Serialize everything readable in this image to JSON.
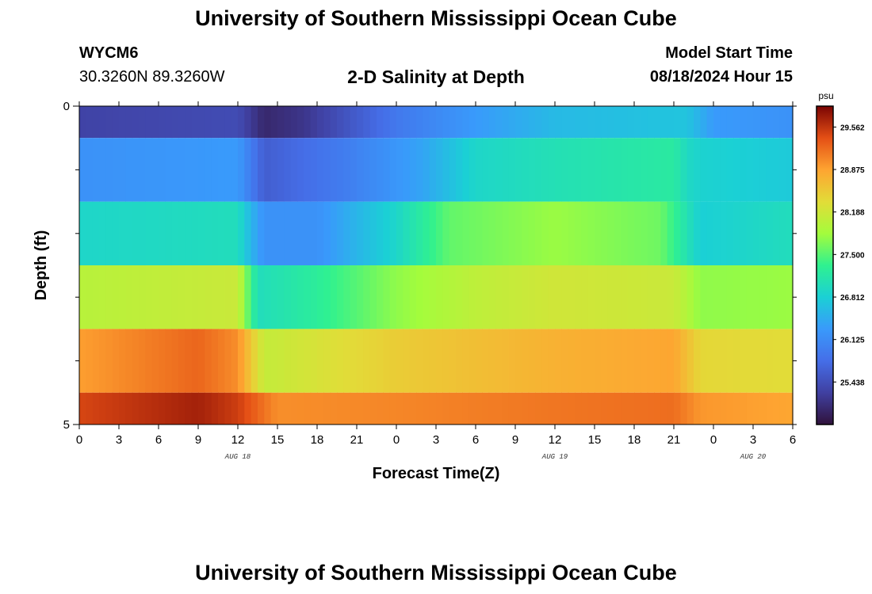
{
  "header": {
    "title": "University of Southern Mississippi Ocean Cube",
    "station_id": "WYCM6",
    "coordinates": "30.3260N  89.3260W",
    "subtitle": "2-D Salinity at Depth",
    "model_start_label": "Model Start Time",
    "model_start_value": "08/18/2024 Hour 15"
  },
  "footer": {
    "title": "University of Southern Mississippi Ocean Cube"
  },
  "chart_data": {
    "type": "heatmap",
    "title": "2-D Salinity at Depth",
    "xlabel": "Forecast Time(Z)",
    "ylabel": "Depth (ft)",
    "x_range_hours": [
      0,
      54
    ],
    "x_tick_labels": [
      "0",
      "3",
      "6",
      "9",
      "12",
      "15",
      "18",
      "21",
      "0",
      "3",
      "6",
      "9",
      "12",
      "15",
      "18",
      "21",
      "0",
      "3",
      "6"
    ],
    "date_labels": [
      {
        "text": "AUG 18",
        "hour": 12
      },
      {
        "text": "AUG 19",
        "hour": 36
      },
      {
        "text": "AUG 20",
        "hour": 51
      }
    ],
    "y_range": [
      0,
      5
    ],
    "y_tick_labels": [
      "0",
      "5"
    ],
    "layers": [
      {
        "depth_top": 0.0,
        "depth_bottom": 0.5,
        "values": [
          [
            0,
            25.3
          ],
          [
            12,
            25.4
          ],
          [
            14,
            25.0
          ],
          [
            17,
            25.15
          ],
          [
            24,
            25.9
          ],
          [
            30,
            26.3
          ],
          [
            36,
            26.6
          ],
          [
            46,
            26.7
          ],
          [
            48,
            26.3
          ],
          [
            54,
            26.2
          ]
        ]
      },
      {
        "depth_top": 0.5,
        "depth_bottom": 1.5,
        "values": [
          [
            0,
            26.2
          ],
          [
            12,
            26.3
          ],
          [
            14,
            25.6
          ],
          [
            20,
            25.95
          ],
          [
            26,
            26.4
          ],
          [
            30,
            26.9
          ],
          [
            36,
            27.05
          ],
          [
            45,
            27.2
          ],
          [
            46,
            26.95
          ],
          [
            47,
            26.85
          ],
          [
            54,
            26.75
          ]
        ]
      },
      {
        "depth_top": 1.5,
        "depth_bottom": 2.5,
        "values": [
          [
            0,
            26.9
          ],
          [
            12,
            27.0
          ],
          [
            13,
            26.55
          ],
          [
            14,
            26.2
          ],
          [
            18,
            26.2
          ],
          [
            24,
            26.9
          ],
          [
            28,
            27.55
          ],
          [
            36,
            27.8
          ],
          [
            44,
            27.6
          ],
          [
            47,
            26.8
          ],
          [
            54,
            27.0
          ]
        ]
      },
      {
        "depth_top": 2.5,
        "depth_bottom": 3.5,
        "values": [
          [
            0,
            28.0
          ],
          [
            12,
            28.15
          ],
          [
            13.5,
            27.0
          ],
          [
            18,
            27.25
          ],
          [
            24,
            27.75
          ],
          [
            30,
            28.05
          ],
          [
            36,
            28.2
          ],
          [
            45,
            28.15
          ],
          [
            47,
            27.75
          ],
          [
            54,
            27.8
          ]
        ]
      },
      {
        "depth_top": 3.5,
        "depth_bottom": 4.5,
        "values": [
          [
            0,
            28.9
          ],
          [
            9,
            29.25
          ],
          [
            12,
            29.0
          ],
          [
            14,
            28.1
          ],
          [
            24,
            28.5
          ],
          [
            36,
            28.75
          ],
          [
            45,
            28.85
          ],
          [
            47,
            28.4
          ],
          [
            54,
            28.35
          ]
        ]
      },
      {
        "depth_top": 4.5,
        "depth_bottom": 5.0,
        "values": [
          [
            0,
            29.45
          ],
          [
            9,
            29.7
          ],
          [
            12,
            29.5
          ],
          [
            15,
            29.0
          ],
          [
            24,
            29.05
          ],
          [
            36,
            29.15
          ],
          [
            45,
            29.2
          ],
          [
            47,
            28.95
          ],
          [
            54,
            28.85
          ]
        ]
      }
    ],
    "colorbar": {
      "unit": "psu",
      "min": 24.75,
      "max": 29.9,
      "tick_labels": [
        "29.562",
        "28.875",
        "28.188",
        "27.500",
        "26.812",
        "26.125",
        "25.438"
      ],
      "tick_values": [
        29.562,
        28.875,
        28.188,
        27.5,
        26.812,
        26.125,
        25.438
      ]
    }
  }
}
